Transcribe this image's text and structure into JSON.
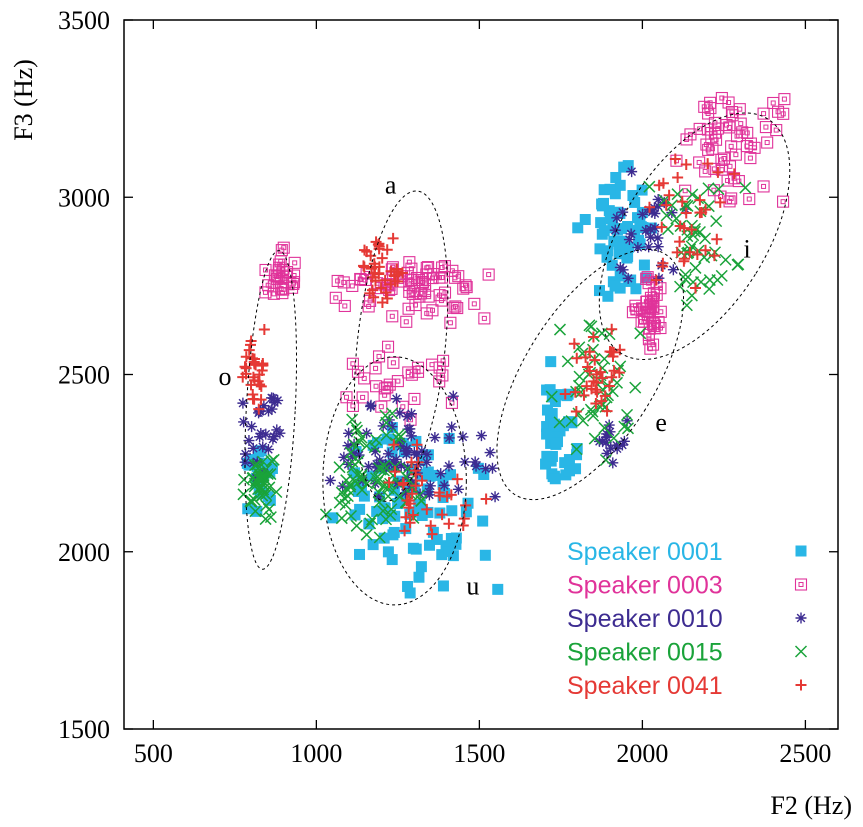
{
  "chart_data": {
    "type": "scatter",
    "title": "",
    "xlabel": "F2 (Hz)",
    "ylabel": "F3 (Hz)",
    "xlim": [
      410,
      2600
    ],
    "ylim": [
      1500,
      3500
    ],
    "xticks": [
      "500",
      "1000",
      "1500",
      "2000",
      "2500"
    ],
    "yticks": [
      "1500",
      "2000",
      "2500",
      "3000",
      "3500"
    ],
    "grid": false,
    "legend_position": "bottom-right",
    "series": [
      {
        "name": "Speaker 0001",
        "marker": "filled-square",
        "color": "#29b6e6",
        "clusters": [
          {
            "vowel": "o",
            "x": [
              780,
              830,
              870
            ],
            "y": [
              2100,
              2230,
              2310
            ],
            "n": 28
          },
          {
            "vowel": "u",
            "x": [
              1010,
              1240,
              1560
            ],
            "y": [
              1870,
              2150,
              2420
            ],
            "n": 95
          },
          {
            "vowel": "e",
            "x": [
              1660,
              1730,
              1830
            ],
            "y": [
              2150,
              2320,
              2560
            ],
            "n": 40
          },
          {
            "vowel": "i",
            "x": [
              1800,
              1900,
              2040
            ],
            "y": [
              2700,
              2920,
              3160
            ],
            "n": 60
          }
        ]
      },
      {
        "name": "Speaker 0003",
        "marker": "open-square",
        "color": "#e0339a",
        "clusters": [
          {
            "vowel": "o",
            "x": [
              830,
              880,
              940
            ],
            "y": [
              2700,
              2780,
              2870
            ],
            "n": 28
          },
          {
            "vowel": "a",
            "x": [
              1020,
              1280,
              1580
            ],
            "y": [
              2620,
              2760,
              2830
            ],
            "n": 70
          },
          {
            "vowel": "u",
            "x": [
              1010,
              1250,
              1490
            ],
            "y": [
              2350,
              2460,
              2600
            ],
            "n": 30
          },
          {
            "vowel": "e",
            "x": [
              1970,
              2030,
              2080
            ],
            "y": [
              2560,
              2680,
              2780
            ],
            "n": 40
          },
          {
            "vowel": "i",
            "x": [
              2080,
              2270,
              2470
            ],
            "y": [
              2950,
              3180,
              3300
            ],
            "n": 60
          }
        ]
      },
      {
        "name": "Speaker 0010",
        "marker": "asterisk",
        "color": "#3d2c91",
        "clusters": [
          {
            "vowel": "o",
            "x": [
              760,
              840,
              900
            ],
            "y": [
              2200,
              2320,
              2560
            ],
            "n": 30
          },
          {
            "vowel": "u",
            "x": [
              1000,
              1250,
              1620
            ],
            "y": [
              2130,
              2280,
              2460
            ],
            "n": 80
          },
          {
            "vowel": "e",
            "x": [
              1850,
              1900,
              1960
            ],
            "y": [
              2230,
              2300,
              2390
            ],
            "n": 15
          },
          {
            "vowel": "i",
            "x": [
              1880,
              2000,
              2150
            ],
            "y": [
              2750,
              2900,
              3080
            ],
            "n": 30
          }
        ]
      },
      {
        "name": "Speaker 0015",
        "marker": "x",
        "color": "#1aa33a",
        "clusters": [
          {
            "vowel": "o",
            "x": [
              760,
              830,
              890
            ],
            "y": [
              2080,
              2200,
              2300
            ],
            "n": 45
          },
          {
            "vowel": "u",
            "x": [
              1010,
              1200,
              1360
            ],
            "y": [
              2020,
              2180,
              2400
            ],
            "n": 80
          },
          {
            "vowel": "e",
            "x": [
              1700,
              1880,
              2010
            ],
            "y": [
              2250,
              2450,
              2650
            ],
            "n": 50
          },
          {
            "vowel": "i",
            "x": [
              1990,
              2160,
              2320
            ],
            "y": [
              2650,
              2880,
              3080
            ],
            "n": 50
          }
        ]
      },
      {
        "name": "Speaker 0041",
        "marker": "plus",
        "color": "#e53935",
        "clusters": [
          {
            "vowel": "o",
            "x": [
              770,
              810,
              850
            ],
            "y": [
              2380,
              2510,
              2650
            ],
            "n": 30
          },
          {
            "vowel": "a",
            "x": [
              1130,
              1220,
              1300
            ],
            "y": [
              2700,
              2790,
              2900
            ],
            "n": 40
          },
          {
            "vowel": "u",
            "x": [
              1150,
              1320,
              1610
            ],
            "y": [
              1980,
              2150,
              2350
            ],
            "n": 35
          },
          {
            "vowel": "e",
            "x": [
              1750,
              1840,
              1960
            ],
            "y": [
              2330,
              2480,
              2660
            ],
            "n": 35
          },
          {
            "vowel": "i",
            "x": [
              1960,
              2120,
              2300
            ],
            "y": [
              2700,
              2950,
              3170
            ],
            "n": 35
          }
        ]
      }
    ],
    "vowel_regions": [
      {
        "label": "a",
        "cx": 1260,
        "cy": 2580,
        "rx": 135,
        "ry": 440,
        "label_x": 1210,
        "label_y": 3010
      },
      {
        "label": "o",
        "cx": 860,
        "cy": 2400,
        "rx": 75,
        "ry": 450,
        "label_x": 700,
        "label_y": 2470
      },
      {
        "label": "u",
        "cx": 1240,
        "cy": 2200,
        "rx": 220,
        "ry": 350,
        "label_x": 1460,
        "label_y": 1880
      },
      {
        "label": "e",
        "cx": 1840,
        "cy": 2500,
        "rx": 200,
        "ry": 400,
        "label_x": 2040,
        "label_y": 2340
      },
      {
        "label": "i",
        "cx": 2160,
        "cy": 2890,
        "rx": 220,
        "ry": 390,
        "label_x": 2310,
        "label_y": 2830
      }
    ]
  }
}
